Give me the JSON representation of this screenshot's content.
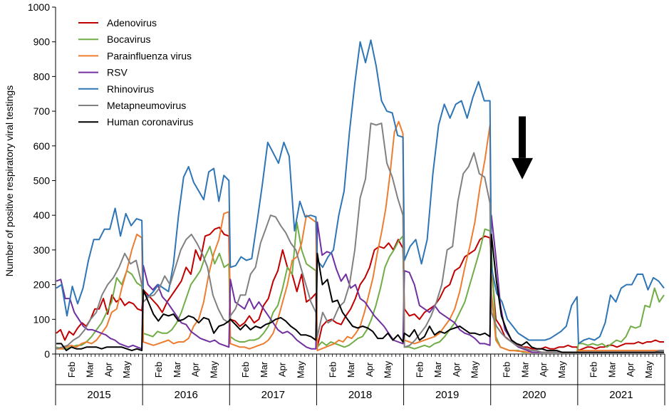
{
  "chart_data": {
    "type": "line",
    "title": "",
    "xlabel": "",
    "ylabel": "Number of positive respiratory viral testings",
    "ylim": [
      0,
      1000
    ],
    "yticks": [
      0,
      100,
      200,
      300,
      400,
      500,
      600,
      700,
      800,
      900,
      1000
    ],
    "grid": false,
    "legend_position": "top-left",
    "years": [
      "2015",
      "2016",
      "2017",
      "2018",
      "2019",
      "2020",
      "2021"
    ],
    "month_labels": [
      "Feb",
      "Mar",
      "Apr",
      "May"
    ],
    "x_unit": "week of Jan–May season (0–21), 7 seasons",
    "arrow_annotation": {
      "year_index": 5,
      "week": 6,
      "y_top": 685,
      "y_bottom": 565
    },
    "series": [
      {
        "name": "Adenovirus",
        "color": "#c00000",
        "seasons": [
          [
            60,
            70,
            40,
            65,
            55,
            75,
            90,
            80,
            100,
            130,
            130,
            160,
            115,
            170,
            150,
            160,
            140,
            150,
            145,
            130,
            125
          ],
          [
            185,
            170,
            155,
            140,
            120,
            150,
            170,
            190,
            210,
            250,
            230,
            300,
            270,
            340,
            345,
            360,
            365,
            345,
            340
          ],
          [
            100,
            95,
            80,
            90,
            110,
            90,
            100,
            140,
            160,
            210,
            240,
            300,
            250,
            230,
            180,
            230,
            150,
            160,
            175
          ],
          [
            20,
            80,
            95,
            100,
            90,
            85,
            110,
            130,
            160,
            200,
            220,
            250,
            300,
            310,
            305,
            320,
            300,
            330,
            305
          ],
          [
            130,
            110,
            115,
            100,
            120,
            130,
            140,
            160,
            190,
            200,
            240,
            250,
            280,
            290,
            300,
            330,
            340,
            335
          ],
          [
            260,
            100,
            80,
            50,
            40,
            30,
            25,
            20,
            20,
            15,
            15,
            15,
            20,
            15,
            15,
            20,
            20,
            25,
            20,
            20
          ],
          [
            10,
            15,
            20,
            20,
            15,
            20,
            20,
            25,
            25,
            20,
            25,
            30,
            30,
            30,
            35,
            30,
            35,
            35,
            40,
            35,
            35
          ]
        ]
      },
      {
        "name": "Bocavirus",
        "color": "#70ad47",
        "seasons": [
          [
            20,
            15,
            15,
            20,
            25,
            25,
            35,
            50,
            70,
            90,
            120,
            150,
            220,
            200,
            240,
            230,
            205,
            195
          ],
          [
            60,
            55,
            50,
            65,
            60,
            60,
            70,
            90,
            120,
            160,
            200,
            220,
            240,
            280,
            310,
            260,
            290,
            250,
            260
          ],
          [
            50,
            40,
            35,
            35,
            40,
            40,
            45,
            60,
            80,
            120,
            140,
            190,
            250,
            230,
            380,
            300,
            260,
            250,
            240
          ],
          [
            20,
            35,
            25,
            35,
            30,
            25,
            20,
            25,
            35,
            45,
            50,
            70,
            100,
            140,
            190,
            250,
            280,
            300,
            325,
            340
          ],
          [
            20,
            20,
            15,
            20,
            25,
            20,
            30,
            35,
            50,
            70,
            90,
            120,
            150,
            200,
            250,
            300,
            360,
            355
          ],
          [
            300,
            50,
            20,
            15,
            10,
            10,
            10,
            5,
            5,
            5,
            5,
            5,
            5,
            5,
            5,
            5,
            5,
            5,
            5,
            5
          ],
          [
            30,
            30,
            25,
            30,
            25,
            30,
            20,
            30,
            40,
            35,
            50,
            80,
            75,
            80,
            140,
            135,
            190,
            150,
            170
          ]
        ]
      },
      {
        "name": "Parainfluenza virus",
        "color": "#ed7d31",
        "seasons": [
          [
            15,
            15,
            20,
            25,
            20,
            30,
            35,
            30,
            40,
            60,
            80,
            120,
            130,
            190,
            240,
            300,
            345,
            335
          ],
          [
            35,
            30,
            25,
            30,
            35,
            40,
            30,
            35,
            35,
            45,
            80,
            100,
            150,
            230,
            290,
            330,
            405,
            410
          ],
          [
            30,
            25,
            20,
            20,
            15,
            20,
            25,
            30,
            40,
            60,
            100,
            150,
            200,
            270,
            280,
            320,
            400,
            390,
            380
          ],
          [
            10,
            15,
            20,
            25,
            30,
            40,
            35,
            50,
            45,
            60,
            80,
            120,
            170,
            220,
            290,
            350,
            420,
            520,
            640,
            670,
            635
          ],
          [
            40,
            35,
            30,
            35,
            40,
            45,
            50,
            60,
            80,
            100,
            130,
            180,
            250,
            310,
            380,
            480,
            560,
            660
          ],
          [
            180,
            40,
            20,
            15,
            10,
            10,
            8,
            8,
            5,
            5,
            5,
            5,
            5,
            5,
            5,
            5,
            5,
            5,
            5,
            5
          ],
          [
            10,
            10,
            10,
            10,
            10,
            10,
            10,
            10,
            10,
            10,
            10,
            10,
            10,
            10,
            10,
            10,
            10,
            10,
            10,
            10
          ]
        ]
      },
      {
        "name": "RSV",
        "color": "#7030a0",
        "seasons": [
          [
            210,
            215,
            160,
            160,
            120,
            100,
            80,
            70,
            70,
            65,
            60,
            55,
            45,
            40,
            30,
            25,
            20,
            25,
            20,
            15
          ],
          [
            255,
            200,
            185,
            200,
            165,
            150,
            130,
            110,
            90,
            85,
            65,
            55,
            45,
            40,
            35,
            40,
            30,
            25,
            20
          ],
          [
            215,
            150,
            140,
            130,
            160,
            130,
            150,
            130,
            110,
            90,
            70,
            60,
            65,
            55,
            40,
            30,
            20,
            15,
            15
          ],
          [
            380,
            285,
            295,
            290,
            245,
            210,
            230,
            190,
            200,
            160,
            150,
            130,
            110,
            95,
            80,
            60,
            40,
            35,
            30
          ],
          [
            240,
            235,
            200,
            140,
            130,
            120,
            140,
            120,
            110,
            100,
            90,
            70,
            60,
            55,
            45,
            30,
            30,
            25
          ],
          [
            400,
            280,
            140,
            70,
            50,
            30,
            20,
            15,
            10,
            5,
            5,
            5,
            5,
            5,
            5,
            5,
            5,
            5,
            5,
            5
          ],
          [
            5,
            5,
            5,
            5,
            5,
            5,
            5,
            5,
            5,
            5,
            5,
            5,
            5,
            5,
            5,
            5,
            5,
            5,
            10,
            10
          ]
        ]
      },
      {
        "name": "Rhinovirus",
        "color": "#2e75b6",
        "seasons": [
          [
            190,
            200,
            110,
            195,
            145,
            190,
            270,
            330,
            330,
            360,
            360,
            420,
            340,
            405,
            370,
            390,
            385
          ],
          [
            175,
            165,
            180,
            200,
            190,
            180,
            260,
            400,
            510,
            540,
            495,
            470,
            445,
            525,
            535,
            440,
            515,
            500
          ],
          [
            250,
            255,
            280,
            270,
            275,
            380,
            490,
            610,
            580,
            550,
            610,
            570,
            355,
            440,
            395,
            400,
            395
          ],
          [
            270,
            250,
            280,
            300,
            400,
            470,
            640,
            780,
            900,
            840,
            905,
            830,
            730,
            700,
            695,
            630,
            625
          ],
          [
            270,
            310,
            330,
            260,
            330,
            520,
            660,
            720,
            680,
            720,
            730,
            680,
            740,
            785,
            730,
            730
          ],
          [
            250,
            175,
            150,
            100,
            80,
            60,
            50,
            40,
            40,
            40,
            40,
            45,
            55,
            65,
            80,
            140,
            165
          ],
          [
            30,
            40,
            45,
            40,
            50,
            90,
            170,
            150,
            190,
            200,
            200,
            230,
            230,
            185,
            220,
            210,
            190
          ]
        ]
      },
      {
        "name": "Metapneumovirus",
        "color": "#808080",
        "seasons": [
          [
            15,
            20,
            25,
            40,
            50,
            70,
            100,
            120,
            170,
            200,
            220,
            250,
            290,
            260,
            270,
            200
          ],
          [
            150,
            165,
            170,
            190,
            225,
            200,
            250,
            300,
            330,
            345,
            320,
            290,
            250,
            170,
            130,
            100,
            90
          ],
          [
            110,
            130,
            170,
            170,
            230,
            250,
            320,
            360,
            400,
            395,
            370,
            350,
            320,
            300,
            250,
            200,
            150,
            120
          ],
          [
            50,
            120,
            90,
            100,
            135,
            150,
            200,
            300,
            450,
            505,
            665,
            660,
            665,
            550,
            510,
            450,
            400
          ],
          [
            20,
            25,
            40,
            60,
            80,
            110,
            150,
            200,
            300,
            310,
            440,
            520,
            540,
            580,
            520,
            510,
            435
          ],
          [
            120,
            80,
            60,
            45,
            35,
            25,
            20,
            15,
            10,
            10,
            5,
            5,
            5,
            5,
            5,
            5,
            5,
            5
          ],
          [
            5,
            5,
            5,
            5,
            5,
            5,
            5,
            5,
            5,
            5,
            5,
            5,
            5,
            5,
            5,
            5,
            5,
            5,
            10,
            10
          ]
        ]
      },
      {
        "name": "Human coronavirus",
        "color": "#000000",
        "seasons": [
          [
            30,
            30,
            10,
            20,
            15,
            15,
            20,
            20,
            20,
            15,
            20,
            20,
            20,
            20,
            15,
            10,
            15,
            10
          ],
          [
            185,
            150,
            115,
            95,
            115,
            110,
            115,
            95,
            100,
            110,
            105,
            90,
            105,
            100,
            60,
            80,
            85,
            95
          ],
          [
            100,
            85,
            70,
            85,
            70,
            80,
            75,
            85,
            90,
            100,
            105,
            95,
            80,
            70,
            55,
            55,
            50,
            40
          ],
          [
            290,
            200,
            215,
            150,
            155,
            120,
            100,
            80,
            75,
            80,
            75,
            65,
            45,
            45,
            60,
            40,
            55,
            35
          ],
          [
            60,
            50,
            70,
            40,
            50,
            80,
            55,
            65,
            60,
            70,
            75,
            80,
            70,
            60,
            60,
            55,
            60,
            50
          ],
          [
            345,
            210,
            110,
            70,
            40,
            30,
            25,
            35,
            20,
            15,
            15,
            10,
            10,
            10,
            5,
            5,
            5,
            5
          ],
          [
            5,
            5,
            5,
            5,
            5,
            5,
            5,
            5,
            5,
            5,
            5,
            5,
            5,
            5,
            5,
            5,
            5,
            5,
            5,
            5
          ]
        ]
      }
    ]
  }
}
